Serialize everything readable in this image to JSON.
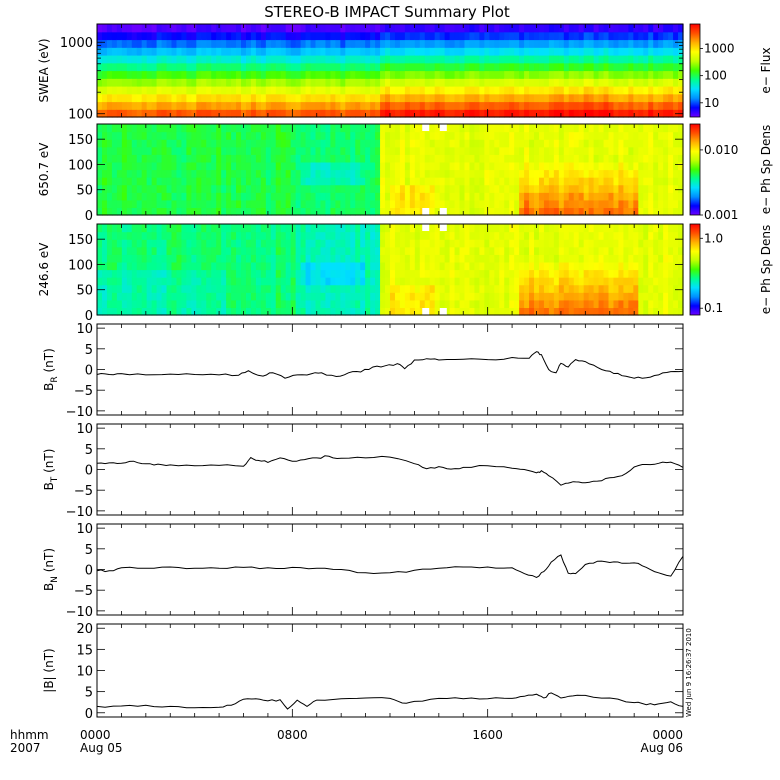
{
  "title": "STEREO-B IMPACT Summary Plot",
  "timestamp_label": "Wed Jun  9 16:26:37 2010",
  "time_axis": {
    "row_labels": [
      "hhmm",
      "2007"
    ],
    "ticks": [
      {
        "hour": 0,
        "main": "0000",
        "sub": "Aug 05"
      },
      {
        "hour": 8,
        "main": "0800",
        "sub": ""
      },
      {
        "hour": 16,
        "main": "1600",
        "sub": ""
      },
      {
        "hour": 24,
        "main": "0000",
        "sub": "Aug 06"
      }
    ],
    "range_hours": [
      0,
      24
    ]
  },
  "colors": {
    "colormap": [
      "#6a00ff",
      "#0000ff",
      "#0090ff",
      "#00e0ff",
      "#00ff90",
      "#40ff00",
      "#c0ff00",
      "#ffff00",
      "#ffb000",
      "#ff5000",
      "#ff0000"
    ]
  },
  "chart_data": [
    {
      "type": "heatmap",
      "ylabel": "SWEA (eV)",
      "yscale": "log",
      "ylim": [
        90,
        1800
      ],
      "yticks": [
        {
          "v": 100,
          "label": "100"
        },
        {
          "v": 1000,
          "label": "1000"
        }
      ],
      "colorbar": {
        "label": "e− Flux",
        "scale": "log",
        "range": [
          3,
          8000
        ],
        "ticks": [
          {
            "v": 10,
            "label": "10"
          },
          {
            "v": 100,
            "label": "100"
          },
          {
            "v": 1000,
            "label": "1000"
          }
        ]
      }
    },
    {
      "type": "heatmap",
      "ylabel": "650.7 eV",
      "ylim": [
        0,
        180
      ],
      "yticks": [
        {
          "v": 0,
          "label": "0"
        },
        {
          "v": 50,
          "label": "50"
        },
        {
          "v": 100,
          "label": "100"
        },
        {
          "v": 150,
          "label": "150"
        }
      ],
      "colorbar": {
        "label": "e− Ph Sp Dens",
        "scale": "log",
        "range": [
          0.001,
          0.025
        ],
        "ticks": [
          {
            "v": 0.001,
            "label": "0.001"
          },
          {
            "v": 0.01,
            "label": "0.010"
          }
        ]
      }
    },
    {
      "type": "heatmap",
      "ylabel": "246.6 eV",
      "ylim": [
        0,
        180
      ],
      "yticks": [
        {
          "v": 0,
          "label": "0"
        },
        {
          "v": 50,
          "label": "50"
        },
        {
          "v": 100,
          "label": "100"
        },
        {
          "v": 150,
          "label": "150"
        }
      ],
      "colorbar": {
        "label": "e− Ph Sp Dens",
        "scale": "log",
        "range": [
          0.08,
          1.6
        ],
        "ticks": [
          {
            "v": 0.1,
            "label": "0.1"
          },
          {
            "v": 1.0,
            "label": "1.0"
          }
        ]
      }
    },
    {
      "type": "line",
      "ylabel_main": "B",
      "ylabel_sub": "R",
      "ylabel_unit": " (nT)",
      "ylim": [
        -11,
        11
      ],
      "yticks": [
        {
          "v": -10,
          "label": "−10"
        },
        {
          "v": -5,
          "label": "−5"
        },
        {
          "v": 0,
          "label": "0"
        },
        {
          "v": 5,
          "label": "5"
        },
        {
          "v": 10,
          "label": "10"
        }
      ],
      "x": [
        0,
        0.5,
        1,
        2,
        3,
        4,
        5,
        5.8,
        6.2,
        6.8,
        7.2,
        7.7,
        8.2,
        8.8,
        9.2,
        9.8,
        10.3,
        10.8,
        11.3,
        11.8,
        12.3,
        12.6,
        13.0,
        13.5,
        14.0,
        15.0,
        16.0,
        17.0,
        17.7,
        18.0,
        18.2,
        18.5,
        18.8,
        19.0,
        19.3,
        19.6,
        20.0,
        20.5,
        21.0,
        21.5,
        22.0,
        22.5,
        23.0,
        23.5,
        24.0
      ],
      "y": [
        -1.2,
        -1.2,
        -1.0,
        -1.3,
        -1.1,
        -1.2,
        -1.3,
        -1.4,
        -0.3,
        -1.6,
        -0.8,
        -2.1,
        -1.3,
        -1.0,
        -0.8,
        -1.7,
        -0.8,
        -0.6,
        0.6,
        0.9,
        1.4,
        0.2,
        2.3,
        2.6,
        2.3,
        2.5,
        2.4,
        2.9,
        2.7,
        4.3,
        3.6,
        0.0,
        -0.8,
        1.5,
        0.6,
        2.4,
        1.9,
        0.5,
        -0.4,
        -1.5,
        -2.1,
        -2.0,
        -1.3,
        -0.5,
        -0.4
      ]
    },
    {
      "type": "line",
      "ylabel_main": "B",
      "ylabel_sub": "T",
      "ylabel_unit": " (nT)",
      "ylim": [
        -11,
        11
      ],
      "yticks": [
        {
          "v": -10,
          "label": "−10"
        },
        {
          "v": -5,
          "label": "−5"
        },
        {
          "v": 0,
          "label": "0"
        },
        {
          "v": 5,
          "label": "5"
        },
        {
          "v": 10,
          "label": "10"
        }
      ],
      "x": [
        0,
        0.5,
        1,
        1.5,
        2,
        2.5,
        3,
        4,
        5,
        6,
        6.3,
        6.6,
        7,
        7.5,
        8,
        8.5,
        9,
        9.5,
        10,
        11,
        12,
        13,
        13.5,
        14,
        14.5,
        15,
        16,
        17,
        17.5,
        18.0,
        18.2,
        18.5,
        19,
        19.3,
        19.6,
        20,
        20.5,
        21,
        21.5,
        22,
        22.5,
        23,
        23.5,
        24
      ],
      "y": [
        1.5,
        1.6,
        1.5,
        2.0,
        1.4,
        1.3,
        1.1,
        0.9,
        1.0,
        0.8,
        2.9,
        2.2,
        1.7,
        2.8,
        2.0,
        2.4,
        2.8,
        3.2,
        2.7,
        2.8,
        3.0,
        1.4,
        0.2,
        0.7,
        0.1,
        0.5,
        0.9,
        0.3,
        0.0,
        -0.8,
        -0.3,
        -1.5,
        -3.8,
        -3.3,
        -3.0,
        -3.2,
        -2.8,
        -2.0,
        -1.5,
        0.6,
        1.2,
        1.5,
        1.8,
        0.5
      ]
    },
    {
      "type": "line",
      "ylabel_main": "B",
      "ylabel_sub": "N",
      "ylabel_unit": " (nT)",
      "ylim": [
        -11,
        11
      ],
      "yticks": [
        {
          "v": -10,
          "label": "−10"
        },
        {
          "v": -5,
          "label": "−5"
        },
        {
          "v": 0,
          "label": "0"
        },
        {
          "v": 5,
          "label": "5"
        },
        {
          "v": 10,
          "label": "10"
        }
      ],
      "x": [
        0,
        0.5,
        1,
        2,
        3,
        4,
        5,
        6,
        7,
        8,
        9,
        10,
        11,
        12,
        13,
        14,
        15,
        16,
        17,
        17.5,
        18,
        18.3,
        18.6,
        19.0,
        19.3,
        19.6,
        20,
        20.5,
        21,
        21.5,
        22,
        22.5,
        23,
        23.5,
        24
      ],
      "y": [
        -0.3,
        -0.3,
        0.4,
        0.3,
        0.6,
        0.3,
        0.3,
        0.5,
        0.4,
        0.5,
        0.3,
        0.0,
        -0.8,
        -0.8,
        -0.2,
        0.3,
        0.6,
        0.6,
        0.4,
        -1.0,
        -1.9,
        -0.5,
        1.8,
        3.5,
        -0.9,
        -1.0,
        1.2,
        2.0,
        1.7,
        1.5,
        1.6,
        0.5,
        -0.8,
        -1.6,
        3.2
      ]
    },
    {
      "type": "line",
      "ylabel_main": "|B|",
      "ylabel_sub": "",
      "ylabel_unit": " (nT)",
      "ylim": [
        -1,
        21
      ],
      "yticks": [
        {
          "v": 0,
          "label": "0"
        },
        {
          "v": 5,
          "label": "5"
        },
        {
          "v": 10,
          "label": "10"
        },
        {
          "v": 15,
          "label": "15"
        },
        {
          "v": 20,
          "label": "20"
        }
      ],
      "x": [
        0,
        1,
        2,
        3,
        4,
        5,
        5.5,
        6,
        6.5,
        7,
        7.5,
        7.8,
        8.2,
        8.6,
        9,
        10,
        11,
        12,
        12.5,
        13,
        14,
        15,
        16,
        17,
        17.5,
        18,
        18.3,
        18.6,
        19,
        19.5,
        20,
        21,
        22,
        22.5,
        23,
        23.5,
        24
      ],
      "y": [
        1.5,
        1.6,
        1.8,
        1.5,
        1.2,
        1.3,
        1.8,
        3.2,
        3.3,
        2.8,
        3.1,
        0.9,
        3.0,
        1.5,
        3.0,
        3.3,
        3.5,
        3.4,
        2.3,
        2.7,
        3.4,
        3.3,
        3.3,
        3.4,
        3.9,
        4.4,
        3.5,
        4.7,
        3.5,
        4.0,
        4.1,
        3.5,
        2.4,
        1.9,
        2.1,
        2.6,
        1.5
      ]
    }
  ]
}
